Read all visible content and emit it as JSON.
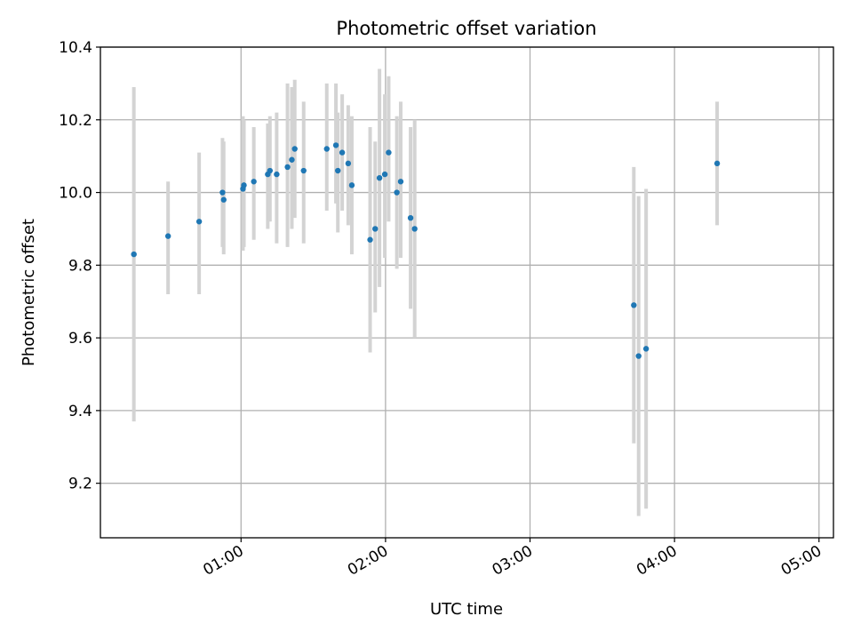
{
  "chart_data": {
    "type": "scatter",
    "title": "Photometric offset variation",
    "xlabel": "UTC time",
    "ylabel": "Photometric offset",
    "x_unit": "minutes since 00:00 UTC",
    "xlim": [
      1.6,
      306
    ],
    "ylim": [
      9.05,
      10.4
    ],
    "xticks": [
      {
        "value": 60,
        "label": "01:00"
      },
      {
        "value": 120,
        "label": "02:00"
      },
      {
        "value": 180,
        "label": "03:00"
      },
      {
        "value": 240,
        "label": "04:00"
      },
      {
        "value": 300,
        "label": "05:00"
      }
    ],
    "yticks": [
      {
        "value": 9.2,
        "label": "9.2"
      },
      {
        "value": 9.4,
        "label": "9.4"
      },
      {
        "value": 9.6,
        "label": "9.6"
      },
      {
        "value": 9.8,
        "label": "9.8"
      },
      {
        "value": 10.0,
        "label": "10.0"
      },
      {
        "value": 10.2,
        "label": "10.2"
      },
      {
        "value": 10.4,
        "label": "10.4"
      }
    ],
    "grid": true,
    "marker_color": "#1f77b4",
    "errorbar_color": "#d3d3d3",
    "points": [
      {
        "x": 15.5,
        "y": 9.83,
        "lo": 9.37,
        "hi": 10.29
      },
      {
        "x": 29.7,
        "y": 9.88,
        "lo": 9.72,
        "hi": 10.03
      },
      {
        "x": 42.6,
        "y": 9.92,
        "lo": 9.72,
        "hi": 10.11
      },
      {
        "x": 52.3,
        "y": 10.0,
        "lo": 9.85,
        "hi": 10.15
      },
      {
        "x": 52.8,
        "y": 9.98,
        "lo": 9.83,
        "hi": 10.14
      },
      {
        "x": 60.8,
        "y": 10.01,
        "lo": 9.84,
        "hi": 10.21
      },
      {
        "x": 61.2,
        "y": 10.02,
        "lo": 9.85,
        "hi": 10.2
      },
      {
        "x": 65.3,
        "y": 10.03,
        "lo": 9.87,
        "hi": 10.18
      },
      {
        "x": 71.1,
        "y": 10.05,
        "lo": 9.9,
        "hi": 10.19
      },
      {
        "x": 72.0,
        "y": 10.06,
        "lo": 9.92,
        "hi": 10.21
      },
      {
        "x": 74.8,
        "y": 10.05,
        "lo": 9.86,
        "hi": 10.22
      },
      {
        "x": 79.3,
        "y": 10.07,
        "lo": 9.85,
        "hi": 10.3
      },
      {
        "x": 81.1,
        "y": 10.09,
        "lo": 9.9,
        "hi": 10.29
      },
      {
        "x": 82.3,
        "y": 10.12,
        "lo": 9.93,
        "hi": 10.31
      },
      {
        "x": 86.0,
        "y": 10.06,
        "lo": 9.86,
        "hi": 10.25
      },
      {
        "x": 95.6,
        "y": 10.12,
        "lo": 9.95,
        "hi": 10.3
      },
      {
        "x": 99.4,
        "y": 10.13,
        "lo": 9.97,
        "hi": 10.3
      },
      {
        "x": 100.2,
        "y": 10.06,
        "lo": 9.89,
        "hi": 10.22
      },
      {
        "x": 102.0,
        "y": 10.11,
        "lo": 9.95,
        "hi": 10.27
      },
      {
        "x": 104.5,
        "y": 10.08,
        "lo": 9.91,
        "hi": 10.24
      },
      {
        "x": 106.0,
        "y": 10.02,
        "lo": 9.83,
        "hi": 10.21
      },
      {
        "x": 113.6,
        "y": 9.87,
        "lo": 9.56,
        "hi": 10.18
      },
      {
        "x": 115.7,
        "y": 9.9,
        "lo": 9.67,
        "hi": 10.14
      },
      {
        "x": 117.5,
        "y": 10.04,
        "lo": 9.74,
        "hi": 10.34
      },
      {
        "x": 119.7,
        "y": 10.05,
        "lo": 9.82,
        "hi": 10.27
      },
      {
        "x": 121.3,
        "y": 10.11,
        "lo": 9.92,
        "hi": 10.32
      },
      {
        "x": 124.7,
        "y": 10.0,
        "lo": 9.79,
        "hi": 10.21
      },
      {
        "x": 126.3,
        "y": 10.03,
        "lo": 9.82,
        "hi": 10.25
      },
      {
        "x": 130.4,
        "y": 9.93,
        "lo": 9.68,
        "hi": 10.18
      },
      {
        "x": 132.1,
        "y": 9.9,
        "lo": 9.6,
        "hi": 10.2
      },
      {
        "x": 223.1,
        "y": 9.69,
        "lo": 9.31,
        "hi": 10.07
      },
      {
        "x": 225.1,
        "y": 9.55,
        "lo": 9.11,
        "hi": 9.99
      },
      {
        "x": 228.2,
        "y": 9.57,
        "lo": 9.13,
        "hi": 10.01
      },
      {
        "x": 257.7,
        "y": 10.08,
        "lo": 9.91,
        "hi": 10.25
      }
    ]
  }
}
